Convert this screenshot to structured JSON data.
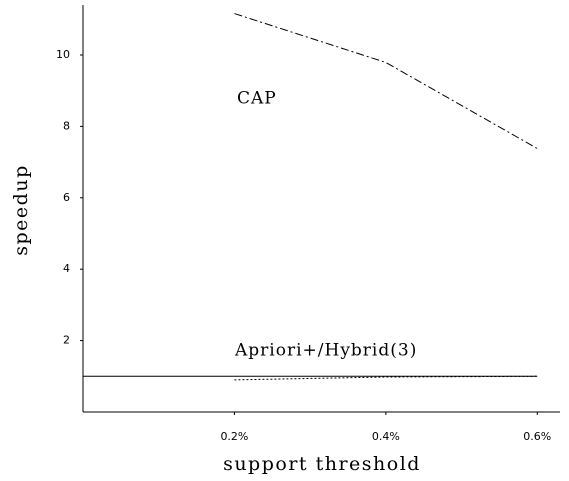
{
  "chart_data": {
    "type": "line",
    "xlabel": "support threshold",
    "ylabel": "speedup",
    "xlim": [
      0,
      0.63
    ],
    "ylim": [
      0,
      11.4
    ],
    "xticks": [
      {
        "value": 0.2,
        "label": "0.2%"
      },
      {
        "value": 0.4,
        "label": "0.4%"
      },
      {
        "value": 0.6,
        "label": "0.6%"
      }
    ],
    "yticks": [
      2,
      4,
      6,
      8,
      10
    ],
    "series": [
      {
        "name": "CAP",
        "color": "#000000",
        "style": "dashdot",
        "x": [
          0.2,
          0.4,
          0.6
        ],
        "values": [
          11.16,
          9.79,
          7.38
        ]
      },
      {
        "name": "Apriori+/Hybrid(3)",
        "color": "#000000",
        "style": "dotted",
        "x": [
          0.2,
          0.4,
          0.6
        ],
        "values": [
          0.9,
          0.98,
          1.0
        ]
      },
      {
        "color": "#000000",
        "style": "solid",
        "x": [
          0,
          0.6
        ],
        "values": [
          1,
          1
        ]
      }
    ]
  }
}
